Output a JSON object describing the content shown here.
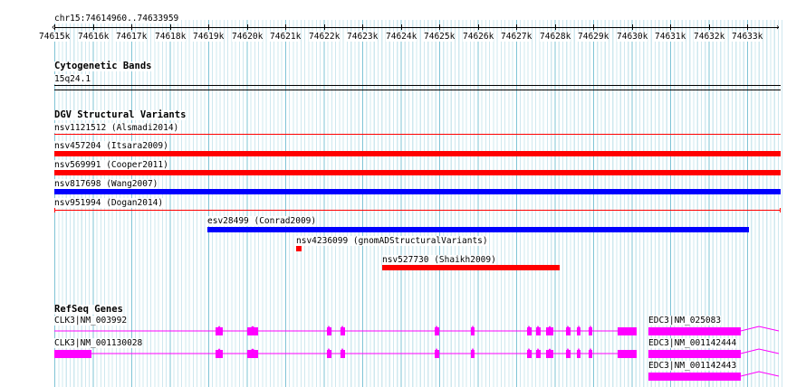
{
  "ruler": {
    "position_label": "chr15:74614960..74633959",
    "ticks": [
      "74615k",
      "74616k",
      "74617k",
      "74618k",
      "74619k",
      "74620k",
      "74621k",
      "74622k",
      "74623k",
      "74624k",
      "74625k",
      "74626k",
      "74627k",
      "74628k",
      "74629k",
      "74630k",
      "74631k",
      "74632k",
      "74633k"
    ],
    "start_marker": "‹",
    "end_marker": "›"
  },
  "cytogenetic": {
    "title": "Cytogenetic Bands",
    "band": "15q24.1"
  },
  "dgv": {
    "title": "DGV Structural Variants",
    "variants": [
      {
        "label": "nsv1121512 (Alsmadi2014)",
        "color": "#ff0000",
        "kind": "loss"
      },
      {
        "label": "nsv457204 (Itsara2009)",
        "color": "#ff0000",
        "kind": "loss"
      },
      {
        "label": "nsv569991 (Cooper2011)",
        "color": "#ff0000",
        "kind": "loss"
      },
      {
        "label": "nsv817698 (Wang2007)",
        "color": "#0000ff",
        "kind": "gain"
      },
      {
        "label": "nsv951994 (Dogan2014)",
        "color": "#ff0000",
        "kind": "loss"
      },
      {
        "label": "esv28499 (Conrad2009)",
        "color": "#0000ff",
        "kind": "gain"
      },
      {
        "label": "nsv4236099 (gnomADStructuralVariants)",
        "color": "#ff0000",
        "kind": "loss"
      },
      {
        "label": "nsv527730 (Shaikh2009)",
        "color": "#ff0000",
        "kind": "loss"
      }
    ]
  },
  "refseq": {
    "title": "RefSeq Genes",
    "genes": [
      {
        "label": "CLK3|NM_003992"
      },
      {
        "label": "CLK3|NM_001130028"
      },
      {
        "label": "EDC3|NM_025083"
      },
      {
        "label": "EDC3|NM_001142444"
      },
      {
        "label": "EDC3|NM_001142443"
      }
    ],
    "gene_color": "#ff00ff"
  },
  "colors": {
    "grid_major": "#7fc4d6",
    "grid_minor": "#cfe8ef",
    "loss": "#ff0000",
    "gain": "#0000ff",
    "gene": "#ff00ff"
  }
}
